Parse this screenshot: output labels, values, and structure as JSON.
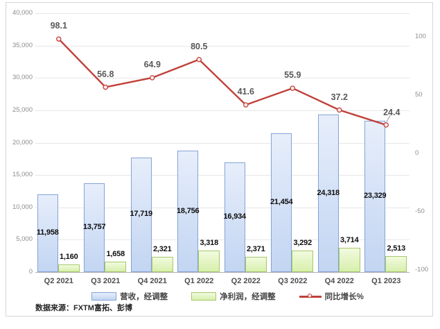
{
  "chart_data": {
    "type": "bar",
    "title": "",
    "categories": [
      "Q2 2021",
      "Q3 2021",
      "Q4 2021",
      "Q1 2022",
      "Q2 2022",
      "Q3 2022",
      "Q4 2022",
      "Q1 2023"
    ],
    "series": [
      {
        "name": "营收，经调整",
        "type": "bar",
        "axis": "left",
        "values": [
          11958,
          13757,
          17719,
          18756,
          16934,
          21454,
          24318,
          23329
        ],
        "labels": [
          "11,958",
          "13,757",
          "17,719",
          "18,756",
          "16,934",
          "21,454",
          "24,318",
          "23,329"
        ],
        "fill_top": "#e7eefb",
        "fill_bottom": "#c2d5f2",
        "border": "#84a3d6"
      },
      {
        "name": "净利润，经调整",
        "type": "bar",
        "axis": "left",
        "values": [
          1160,
          1658,
          2321,
          3318,
          2371,
          3292,
          3714,
          2513
        ],
        "labels": [
          "1,160",
          "1,658",
          "2,321",
          "3,318",
          "2,371",
          "3,292",
          "3,714",
          "2,513"
        ],
        "fill_top": "#f2fbdf",
        "fill_bottom": "#d7efac",
        "border": "#a7c768"
      },
      {
        "name": "同比增长%",
        "type": "line",
        "axis": "right",
        "values": [
          98.1,
          56.8,
          64.9,
          80.5,
          41.6,
          55.9,
          37.2,
          24.4
        ],
        "labels": [
          "98.1",
          "56.8",
          "64.9",
          "80.5",
          "41.6",
          "55.9",
          "37.2",
          "24.4"
        ],
        "color": "#c0413a",
        "marker_fill": "#fbeae8"
      }
    ],
    "left_axis": {
      "min": 0,
      "max": 40000,
      "step": 5000,
      "ticks": [
        "0",
        "5,000",
        "10,000",
        "15,000",
        "20,000",
        "25,000",
        "30,000",
        "35,000",
        "40,000"
      ]
    },
    "right_axis": {
      "min": -100,
      "max": 100,
      "step": 50,
      "ticks": [
        "-100",
        "-50",
        "0",
        "50",
        "100"
      ]
    },
    "grid": true,
    "legend_position": "bottom"
  },
  "source_note": "数据来源：FXTM富拓、彭博",
  "colors": {
    "grid": "#e7e7e7",
    "axis_line": "#b3b3b3",
    "tick_label": "#8c8c8c",
    "bar_label": "#0d0d0d",
    "line_label": "#595959",
    "frame_border": "#d6d6d6",
    "leader_line": "#999999"
  }
}
